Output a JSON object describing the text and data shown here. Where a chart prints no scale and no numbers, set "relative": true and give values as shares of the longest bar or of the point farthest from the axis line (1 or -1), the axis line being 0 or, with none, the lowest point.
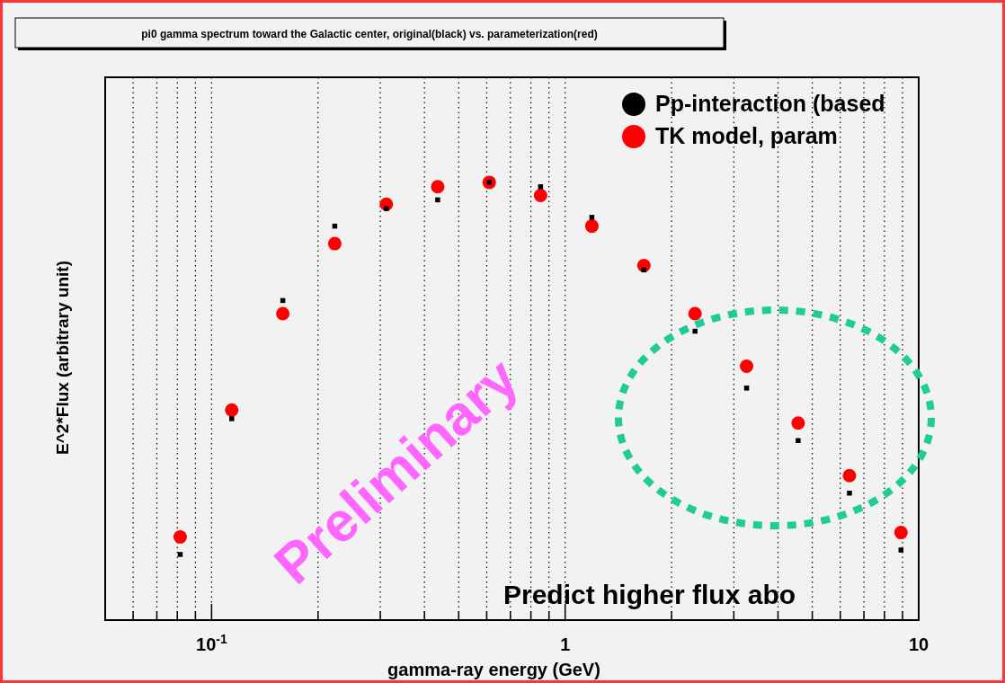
{
  "chart_data": {
    "type": "scatter",
    "title": "pi0 gamma spectrum toward the Galactic center, original(black) vs. parameterization(red)",
    "xlabel": "gamma-ray energy (GeV)",
    "ylabel": "E^2*Flux (arbitrary unit)",
    "log": "x",
    "xlim": [
      0.05,
      10
    ],
    "xticks": [
      {
        "value": 0.05,
        "label": null
      },
      {
        "value": 0.06,
        "label": null
      },
      {
        "value": 0.07,
        "label": null
      },
      {
        "value": 0.08,
        "label": null
      },
      {
        "value": 0.09,
        "label": null
      },
      {
        "value": 0.1,
        "label": "10$^{-1}$"
      },
      {
        "value": 0.2,
        "label": null
      },
      {
        "value": 0.3,
        "label": null
      },
      {
        "value": 0.4,
        "label": null
      },
      {
        "value": 0.5,
        "label": null
      },
      {
        "value": 0.6,
        "label": null
      },
      {
        "value": 0.7,
        "label": null
      },
      {
        "value": 0.8,
        "label": null
      },
      {
        "value": 0.9,
        "label": null
      },
      1,
      {
        "value": 2,
        "label": null
      },
      {
        "value": 3,
        "label": null
      },
      {
        "value": 4,
        "label": null
      },
      {
        "value": 5,
        "label": null
      },
      {
        "value": 6,
        "label": null
      },
      {
        "value": 7,
        "label": null
      },
      {
        "value": 8,
        "label": null
      },
      {
        "value": 9,
        "label": null
      },
      10
    ],
    "relative": true,
    "grid": "x",
    "legend": "top right",
    "tick_labels": "x",
    "x": [
      0.0815,
      0.114,
      0.159,
      0.223,
      0.312,
      0.436,
      0.61,
      0.852,
      1.19,
      1.67,
      2.33,
      3.26,
      4.56,
      6.37,
      8.91
    ],
    "series": [
      {
        "name": "Pp-interaction (based",
        "color": "#000000",
        "marker": "square",
        "values": [
          0.15,
          0.46,
          0.73,
          0.9,
          0.94,
          0.96,
          1,
          0.99,
          0.92,
          0.8,
          0.66,
          0.53,
          0.41,
          0.29,
          0.16
        ]
      },
      {
        "name": "TK model, param",
        "color": "#ff0000",
        "marker": "circle",
        "values": [
          0.19,
          0.48,
          0.7,
          0.86,
          0.95,
          0.99,
          1,
          0.97,
          0.9,
          0.81,
          0.7,
          0.58,
          0.45,
          0.33,
          0.2
        ]
      }
    ],
    "annotations": [
      "Predict higher flux abo",
      "Preliminary"
    ]
  }
}
